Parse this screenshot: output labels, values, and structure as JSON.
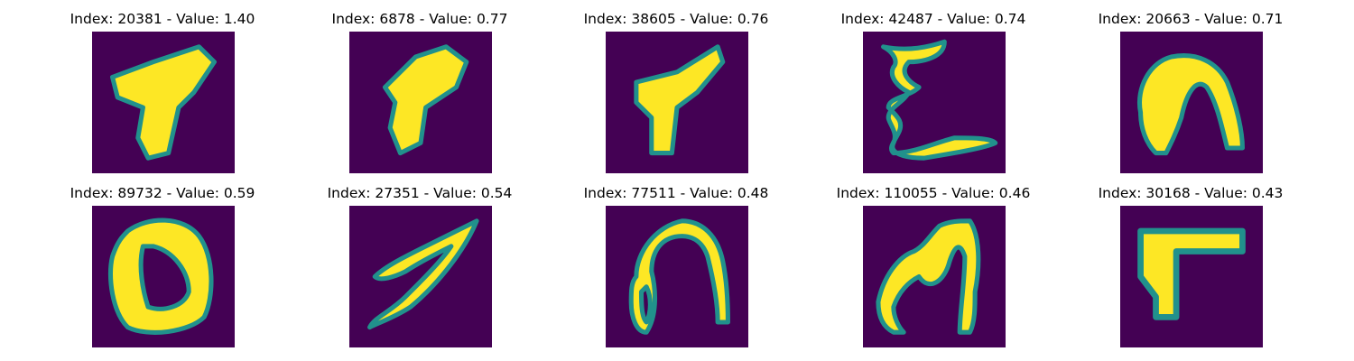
{
  "colors": {
    "background": "#440154",
    "foreground": "#fde725",
    "edge": "#21918c"
  },
  "panels": [
    {
      "index": "20381",
      "value": "1.40",
      "title": "Index: 20381 - Value: 1.40",
      "glyph": "blob-t"
    },
    {
      "index": "6878",
      "value": "0.77",
      "title": "Index: 6878 - Value: 0.77",
      "glyph": "blob-7"
    },
    {
      "index": "38605",
      "value": "0.76",
      "title": "Index: 38605 - Value: 0.76",
      "glyph": "blob-t2"
    },
    {
      "index": "42487",
      "value": "0.74",
      "title": "Index: 42487 - Value: 0.74",
      "glyph": "squiggle-e"
    },
    {
      "index": "20663",
      "value": "0.71",
      "title": "Index: 20663 - Value: 0.71",
      "glyph": "arch-n"
    },
    {
      "index": "89732",
      "value": "0.59",
      "title": "Index: 89732 - Value: 0.59",
      "glyph": "loop-o"
    },
    {
      "index": "27351",
      "value": "0.54",
      "title": "Index: 27351 - Value: 0.54",
      "glyph": "slash-v"
    },
    {
      "index": "77511",
      "value": "0.48",
      "title": "Index: 77511 - Value: 0.48",
      "glyph": "arch-n2"
    },
    {
      "index": "110055",
      "value": "0.46",
      "title": "Index: 110055 - Value: 0.46",
      "glyph": "letter-m"
    },
    {
      "index": "30168",
      "value": "0.43",
      "title": "Index: 30168 - Value: 0.43",
      "glyph": "corner-l"
    }
  ]
}
